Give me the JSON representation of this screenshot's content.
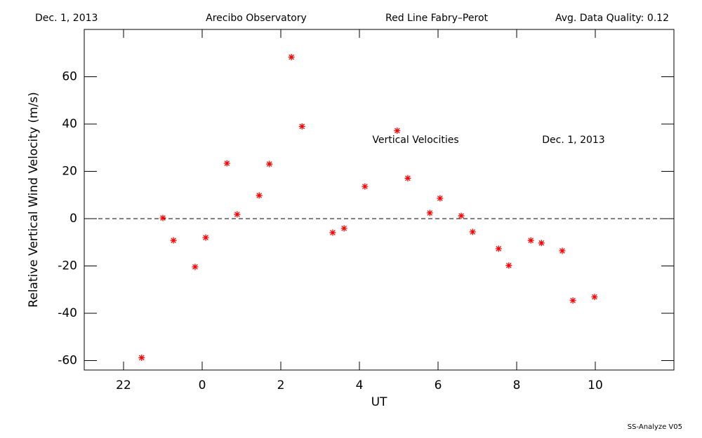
{
  "chart_data": {
    "type": "scatter",
    "header": [
      "Dec. 1, 2013",
      "Arecibo Observatory",
      "Red Line Fabry–Perot",
      "Avg. Data Quality: 0.12"
    ],
    "annotations": [
      "Vertical Velocities",
      "Dec. 1, 2013"
    ],
    "footer": "SS-Analyze V05",
    "xlabel": "UT",
    "ylabel": "Relative Vertical Wind Velocity (m/s)",
    "xlim": [
      -3,
      12
    ],
    "xticks": [
      {
        "value": -2,
        "label": "22"
      },
      0,
      2,
      4,
      6,
      8,
      10
    ],
    "ylim": [
      -64,
      80
    ],
    "yticks": [
      -60,
      -40,
      -20,
      0,
      20,
      40,
      60
    ],
    "reference_line": 0,
    "series": [
      {
        "name": "Vertical Velocities",
        "color": "#ff0000",
        "x": [
          -1.54,
          -1.0,
          -0.73,
          -0.18,
          0.09,
          0.63,
          0.89,
          1.45,
          1.71,
          2.27,
          2.54,
          3.32,
          3.61,
          4.14,
          4.96,
          5.23,
          5.79,
          6.05,
          6.59,
          6.88,
          7.54,
          7.8,
          8.36,
          8.63,
          9.16,
          9.43,
          9.98
        ],
        "values": [
          -58.8,
          0.3,
          -9.2,
          -20.4,
          -8.0,
          23.4,
          1.8,
          9.8,
          23.1,
          68.3,
          39.0,
          -5.9,
          -4.1,
          13.6,
          37.2,
          17.1,
          2.4,
          8.6,
          1.2,
          -5.6,
          -12.7,
          -19.8,
          -9.2,
          -10.3,
          -13.6,
          -34.6,
          -33.1
        ]
      }
    ]
  }
}
